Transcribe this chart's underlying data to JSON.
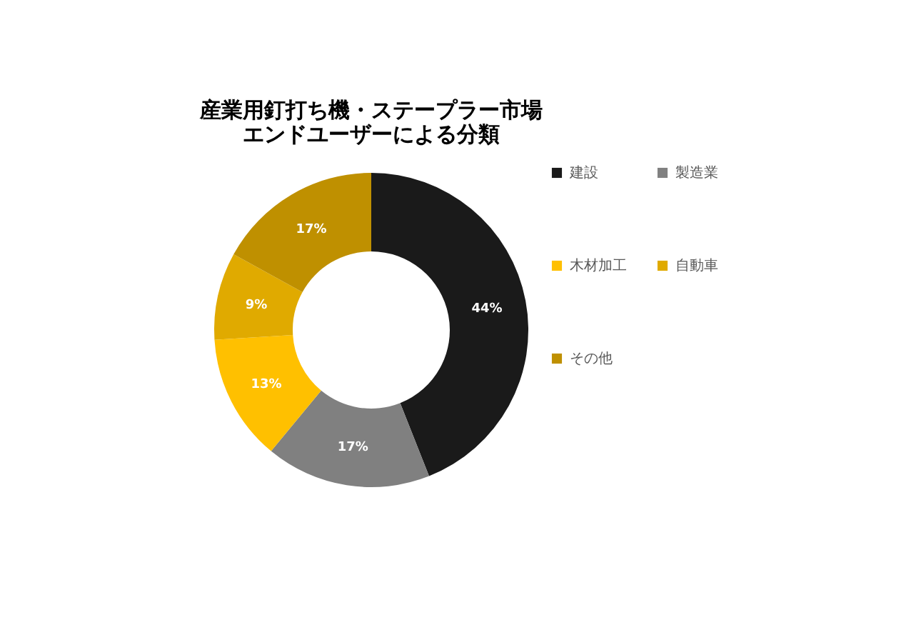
{
  "chart_data": {
    "type": "donut",
    "title": [
      "産業用釘打ち機・ステープラー市場",
      "エンドユーザーによる分類"
    ],
    "categories": [
      "建設",
      "製造業",
      "木材加工",
      "自動車",
      "その他"
    ],
    "values": [
      44,
      17,
      13,
      9,
      17
    ],
    "colors": [
      "#1a1a1a",
      "#808080",
      "#ffc000",
      "#e0aa00",
      "#bf9000"
    ],
    "value_labels": [
      "44%",
      "17%",
      "13%",
      "9%",
      "17%"
    ],
    "legend": "right"
  }
}
